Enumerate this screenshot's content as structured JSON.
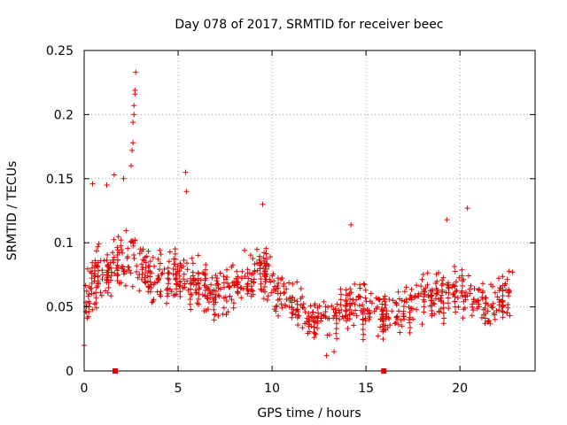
{
  "chart_data": {
    "type": "scatter",
    "title": "Day 078 of 2017, SRMTID for receiver beec",
    "xlabel": "GPS time / hours",
    "ylabel": "SRMTID / TECUs",
    "xlim": [
      0,
      24
    ],
    "ylim": [
      0,
      0.25
    ],
    "xticks": [
      0,
      5,
      10,
      15,
      20
    ],
    "yticks": [
      0,
      0.05,
      0.1,
      0.15,
      0.2,
      0.25
    ],
    "xtick_labels": [
      "0",
      "5",
      "10",
      "15",
      "20"
    ],
    "ytick_labels": [
      "0",
      "0.05",
      "0.1",
      "0.15",
      "0.2",
      "0.25"
    ],
    "grid": true,
    "marker": "+",
    "marker_color": "#e00000",
    "marker_count": 700,
    "series_envelope": [
      {
        "x": 0.0,
        "mean": 0.05,
        "spread": 0.025
      },
      {
        "x": 0.5,
        "mean": 0.075,
        "spread": 0.035
      },
      {
        "x": 1.0,
        "mean": 0.07,
        "spread": 0.035
      },
      {
        "x": 1.5,
        "mean": 0.085,
        "spread": 0.035
      },
      {
        "x": 2.0,
        "mean": 0.085,
        "spread": 0.035
      },
      {
        "x": 2.5,
        "mean": 0.09,
        "spread": 0.04
      },
      {
        "x": 3.0,
        "mean": 0.08,
        "spread": 0.035
      },
      {
        "x": 4.0,
        "mean": 0.07,
        "spread": 0.03
      },
      {
        "x": 5.0,
        "mean": 0.075,
        "spread": 0.035
      },
      {
        "x": 6.0,
        "mean": 0.07,
        "spread": 0.03
      },
      {
        "x": 7.0,
        "mean": 0.06,
        "spread": 0.03
      },
      {
        "x": 8.0,
        "mean": 0.065,
        "spread": 0.03
      },
      {
        "x": 9.0,
        "mean": 0.075,
        "spread": 0.035
      },
      {
        "x": 9.5,
        "mean": 0.08,
        "spread": 0.035
      },
      {
        "x": 10.0,
        "mean": 0.065,
        "spread": 0.03
      },
      {
        "x": 11.0,
        "mean": 0.055,
        "spread": 0.03
      },
      {
        "x": 12.0,
        "mean": 0.045,
        "spread": 0.025
      },
      {
        "x": 13.0,
        "mean": 0.04,
        "spread": 0.025
      },
      {
        "x": 14.0,
        "mean": 0.055,
        "spread": 0.03
      },
      {
        "x": 15.0,
        "mean": 0.05,
        "spread": 0.028
      },
      {
        "x": 16.0,
        "mean": 0.045,
        "spread": 0.025
      },
      {
        "x": 17.0,
        "mean": 0.05,
        "spread": 0.028
      },
      {
        "x": 18.0,
        "mean": 0.06,
        "spread": 0.03
      },
      {
        "x": 19.0,
        "mean": 0.06,
        "spread": 0.03
      },
      {
        "x": 20.0,
        "mean": 0.065,
        "spread": 0.032
      },
      {
        "x": 21.0,
        "mean": 0.05,
        "spread": 0.028
      },
      {
        "x": 22.0,
        "mean": 0.055,
        "spread": 0.03
      },
      {
        "x": 22.8,
        "mean": 0.065,
        "spread": 0.03
      }
    ],
    "notable_points": [
      {
        "x": 0.0,
        "y": 0.02
      },
      {
        "x": 0.45,
        "y": 0.146
      },
      {
        "x": 1.2,
        "y": 0.145
      },
      {
        "x": 1.6,
        "y": 0.153
      },
      {
        "x": 2.1,
        "y": 0.15
      },
      {
        "x": 2.5,
        "y": 0.16
      },
      {
        "x": 2.55,
        "y": 0.172
      },
      {
        "x": 2.6,
        "y": 0.178
      },
      {
        "x": 2.6,
        "y": 0.194
      },
      {
        "x": 2.65,
        "y": 0.2
      },
      {
        "x": 2.65,
        "y": 0.207
      },
      {
        "x": 2.7,
        "y": 0.216
      },
      {
        "x": 2.7,
        "y": 0.219
      },
      {
        "x": 2.75,
        "y": 0.233
      },
      {
        "x": 5.4,
        "y": 0.155
      },
      {
        "x": 5.45,
        "y": 0.14
      },
      {
        "x": 9.5,
        "y": 0.13
      },
      {
        "x": 14.2,
        "y": 0.114
      },
      {
        "x": 19.3,
        "y": 0.118
      },
      {
        "x": 20.4,
        "y": 0.127
      },
      {
        "x": 12.9,
        "y": 0.012
      },
      {
        "x": 13.3,
        "y": 0.015
      }
    ],
    "axis_markers": [
      {
        "x": 1.65,
        "y": 0
      },
      {
        "x": 15.95,
        "y": 0
      }
    ]
  }
}
